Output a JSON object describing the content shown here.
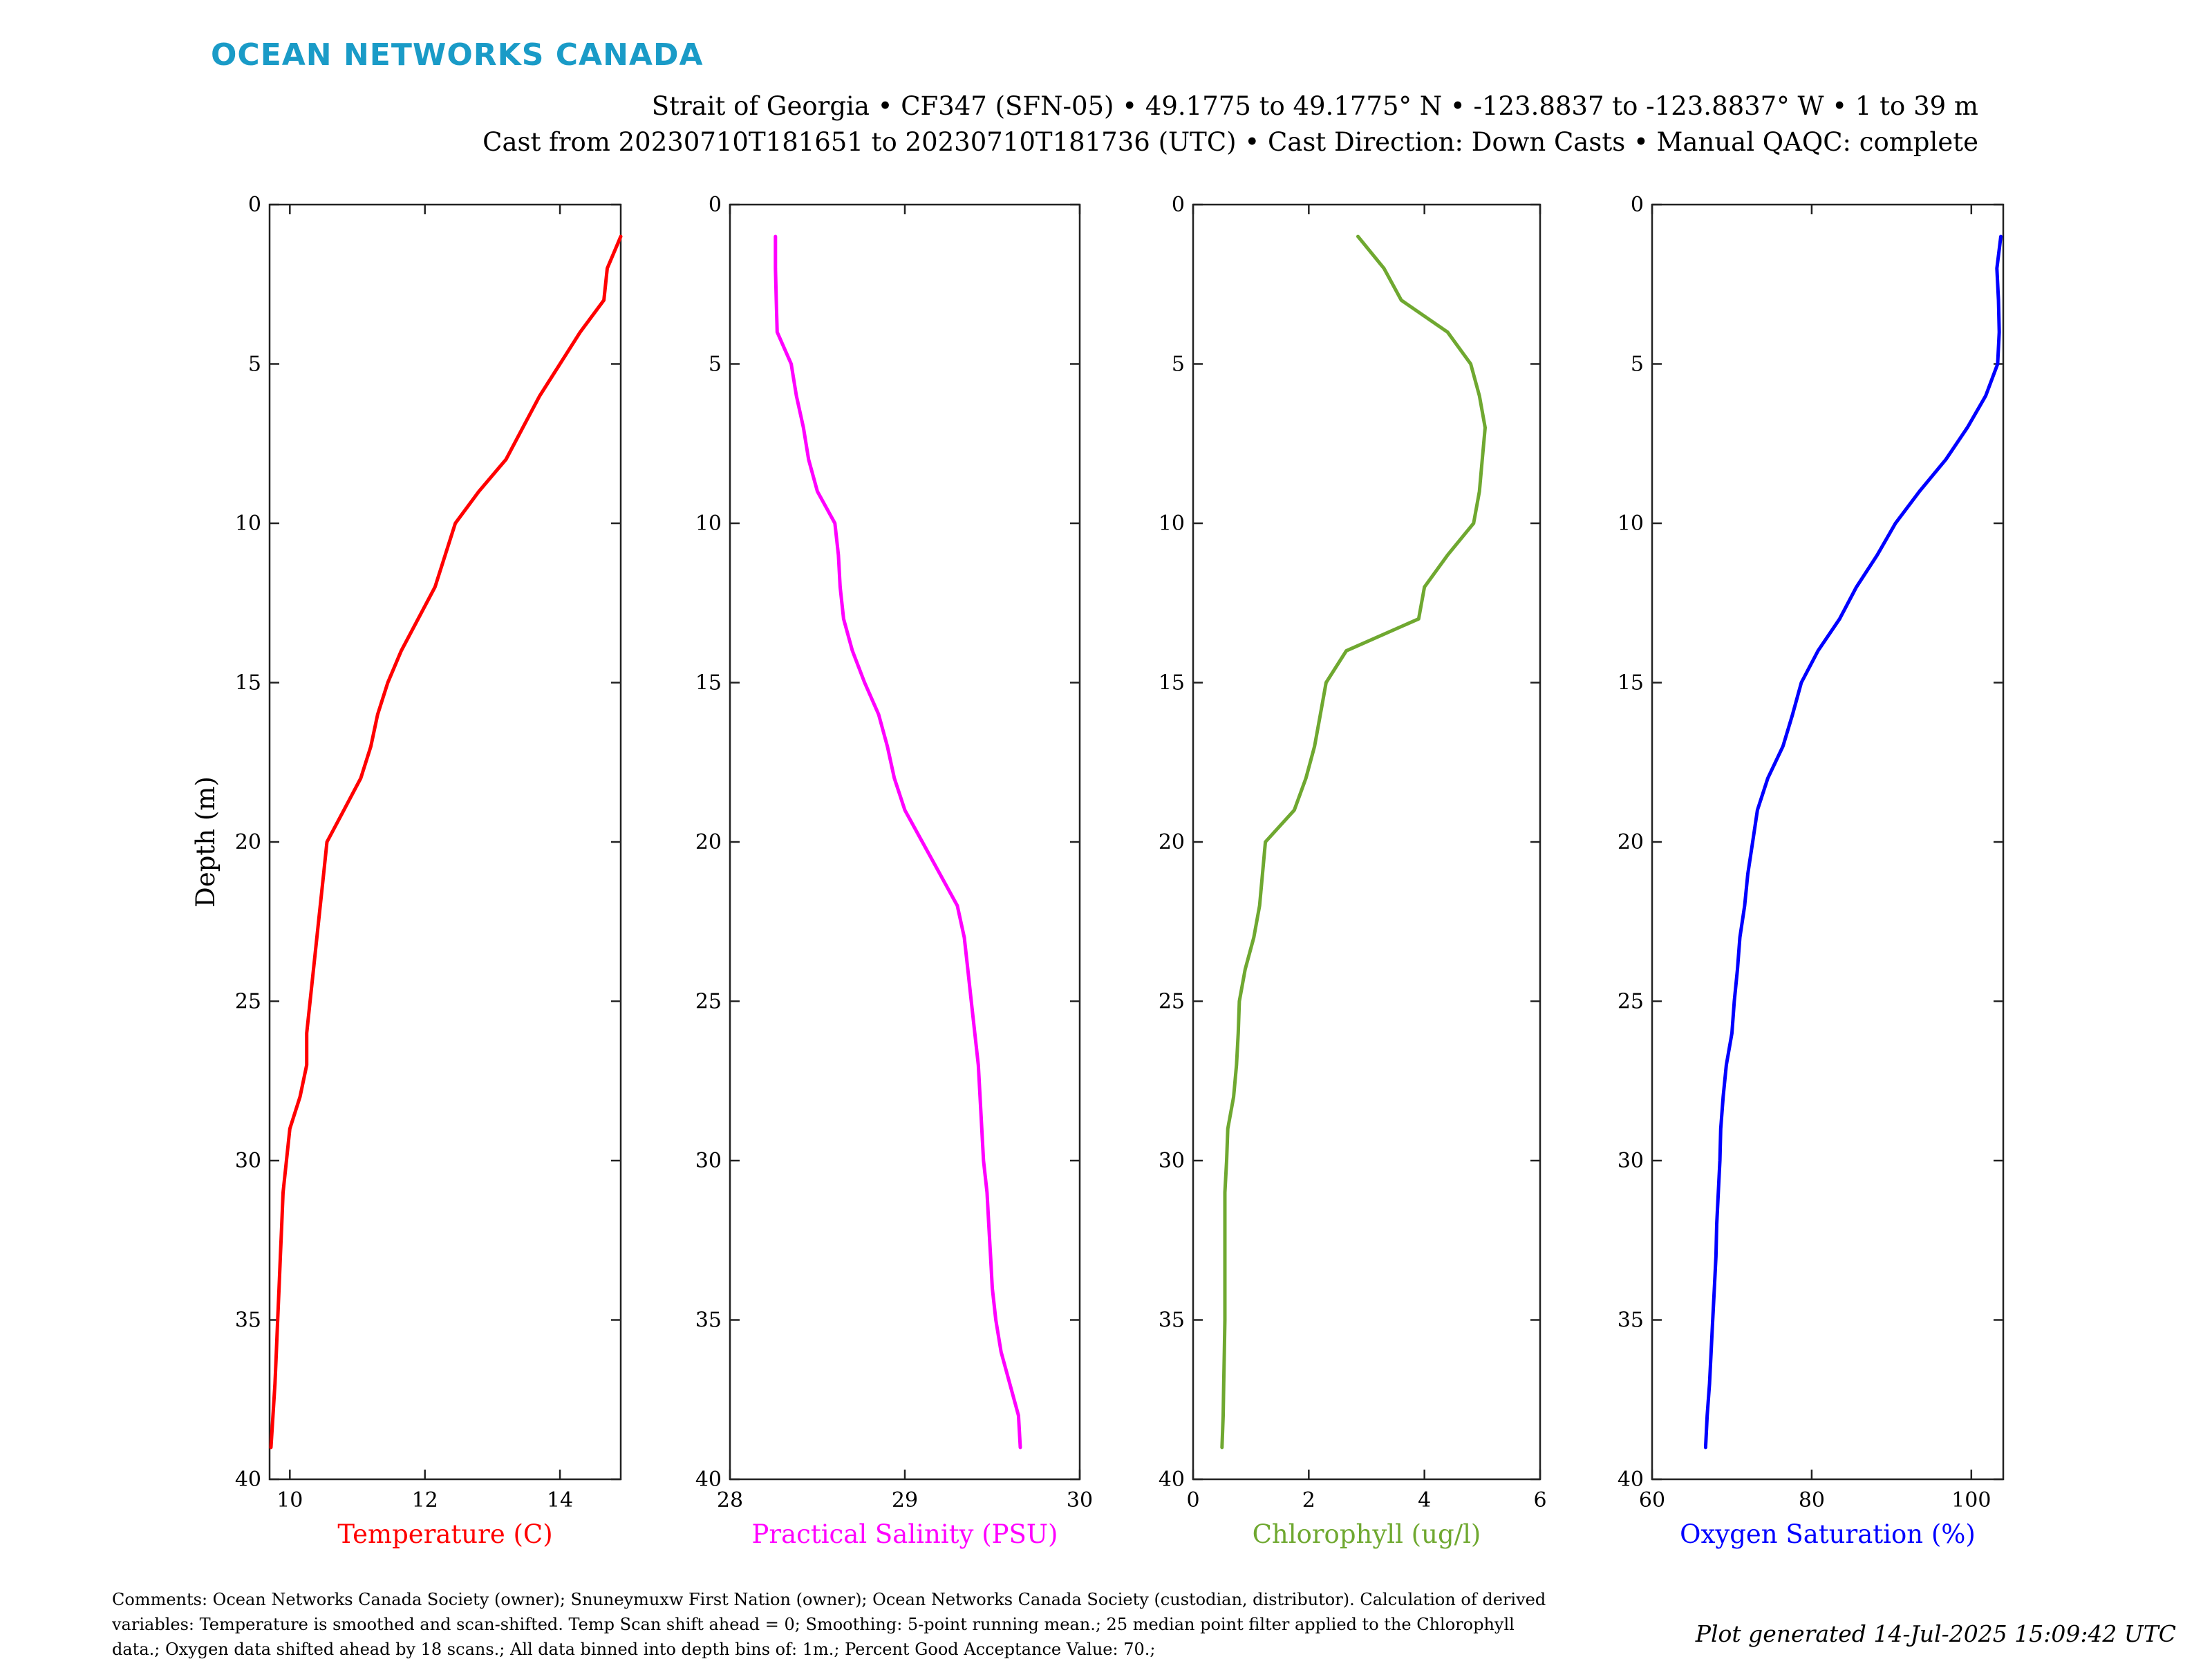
{
  "brand": "OCEAN NETWORKS CANADA",
  "header": {
    "line1": "Strait of Georgia • CF347 (SFN-05) • 49.1775 to 49.1775° N • -123.8837 to -123.8837° W • 1 to 39 m",
    "line2": "Cast from 20230710T181651 to 20230710T181736 (UTC) • Cast Direction: Down Casts • Manual QAQC: complete"
  },
  "comments": [
    "Comments: Ocean Networks Canada Society (owner); Snuneymuxw First Nation (owner); Ocean Networks Canada Society (custodian, distributor). Calculation of derived",
    "variables: Temperature is smoothed and scan-shifted. Temp Scan shift ahead = 0; Smoothing: 5-point running mean.; 25 median point filter applied to the Chlorophyll",
    "data.; Oxygen data shifted ahead by 18 scans.; All data binned into depth bins of: 1m.; Percent Good Acceptance Value: 70.;"
  ],
  "generated": "Plot generated 14-Jul-2025 15:09:42 UTC",
  "chart_data": [
    {
      "type": "line",
      "xlabel": "Temperature (C)",
      "ylabel": "Depth (m)",
      "color": "#ff0000",
      "xlim": [
        9.7,
        14.9
      ],
      "xticks": [
        10,
        12,
        14
      ],
      "ylim": [
        0,
        40
      ],
      "yticks": [
        0,
        5,
        10,
        15,
        20,
        25,
        30,
        35,
        40
      ],
      "y_reversed": true,
      "depth": [
        1,
        2,
        3,
        4,
        5,
        6,
        7,
        8,
        9,
        10,
        11,
        12,
        13,
        14,
        15,
        16,
        17,
        18,
        19,
        20,
        21,
        22,
        23,
        24,
        25,
        26,
        27,
        28,
        29,
        30,
        31,
        32,
        33,
        34,
        35,
        36,
        37,
        38,
        39
      ],
      "values": [
        14.9,
        14.7,
        14.65,
        14.3,
        14.0,
        13.7,
        13.45,
        13.2,
        12.8,
        12.45,
        12.3,
        12.15,
        11.9,
        11.65,
        11.45,
        11.3,
        11.2,
        11.05,
        10.8,
        10.55,
        10.5,
        10.45,
        10.4,
        10.35,
        10.3,
        10.25,
        10.25,
        10.15,
        10.0,
        9.95,
        9.9,
        9.88,
        9.86,
        9.84,
        9.82,
        9.8,
        9.78,
        9.75,
        9.72
      ]
    },
    {
      "type": "line",
      "xlabel": "Practical Salinity (PSU)",
      "ylabel": "",
      "color": "#ff00ff",
      "xlim": [
        28,
        30
      ],
      "xticks": [
        28,
        29,
        30
      ],
      "ylim": [
        0,
        40
      ],
      "yticks": [
        0,
        5,
        10,
        15,
        20,
        25,
        30,
        35,
        40
      ],
      "y_reversed": true,
      "depth": [
        1,
        2,
        3,
        4,
        5,
        6,
        7,
        8,
        9,
        10,
        11,
        12,
        13,
        14,
        15,
        16,
        17,
        18,
        19,
        20,
        21,
        22,
        23,
        24,
        25,
        26,
        27,
        28,
        29,
        30,
        31,
        32,
        33,
        34,
        35,
        36,
        37,
        38,
        39
      ],
      "values": [
        28.26,
        28.26,
        28.265,
        28.27,
        28.35,
        28.38,
        28.42,
        28.45,
        28.5,
        28.6,
        28.62,
        28.63,
        28.65,
        28.7,
        28.77,
        28.85,
        28.9,
        28.94,
        29.0,
        29.1,
        29.2,
        29.3,
        29.34,
        29.36,
        29.38,
        29.4,
        29.42,
        29.43,
        29.44,
        29.45,
        29.47,
        29.48,
        29.49,
        29.5,
        29.52,
        29.55,
        29.6,
        29.65,
        29.66
      ]
    },
    {
      "type": "line",
      "xlabel": "Chlorophyll (ug/l)",
      "ylabel": "",
      "color": "#6fa830",
      "xlim": [
        0,
        6
      ],
      "xticks": [
        0,
        2,
        4,
        6
      ],
      "ylim": [
        0,
        40
      ],
      "yticks": [
        0,
        5,
        10,
        15,
        20,
        25,
        30,
        35,
        40
      ],
      "y_reversed": true,
      "depth": [
        1,
        2,
        3,
        4,
        5,
        6,
        7,
        8,
        9,
        10,
        11,
        12,
        13,
        14,
        15,
        16,
        17,
        18,
        19,
        20,
        21,
        22,
        23,
        24,
        25,
        26,
        27,
        28,
        29,
        30,
        31,
        32,
        33,
        34,
        35,
        36,
        37,
        38,
        39
      ],
      "values": [
        2.85,
        3.3,
        3.6,
        4.4,
        4.8,
        4.95,
        5.05,
        5.0,
        4.95,
        4.85,
        4.4,
        4.0,
        3.9,
        2.65,
        2.3,
        2.2,
        2.1,
        1.95,
        1.75,
        1.25,
        1.2,
        1.15,
        1.05,
        0.9,
        0.8,
        0.78,
        0.75,
        0.7,
        0.6,
        0.58,
        0.55,
        0.55,
        0.55,
        0.55,
        0.55,
        0.54,
        0.53,
        0.52,
        0.5
      ]
    },
    {
      "type": "line",
      "xlabel": "Oxygen Saturation (%)",
      "ylabel": "",
      "color": "#0000ff",
      "xlim": [
        60,
        104
      ],
      "xticks": [
        60,
        80,
        100
      ],
      "ylim": [
        0,
        40
      ],
      "yticks": [
        0,
        5,
        10,
        15,
        20,
        25,
        30,
        35,
        40
      ],
      "y_reversed": true,
      "depth": [
        1,
        2,
        3,
        4,
        5,
        6,
        7,
        8,
        9,
        10,
        11,
        12,
        13,
        14,
        15,
        16,
        17,
        18,
        19,
        20,
        21,
        22,
        23,
        24,
        25,
        26,
        27,
        28,
        29,
        30,
        31,
        32,
        33,
        34,
        35,
        36,
        37,
        38,
        39
      ],
      "values": [
        103.7,
        103.2,
        103.4,
        103.5,
        103.3,
        101.8,
        99.5,
        96.8,
        93.5,
        90.5,
        88.2,
        85.6,
        83.5,
        80.8,
        78.7,
        77.6,
        76.4,
        74.5,
        73.2,
        72.6,
        72.0,
        71.6,
        71.0,
        70.7,
        70.3,
        70.0,
        69.3,
        68.9,
        68.6,
        68.5,
        68.3,
        68.1,
        68.0,
        67.8,
        67.6,
        67.4,
        67.2,
        66.9,
        66.7
      ]
    }
  ]
}
